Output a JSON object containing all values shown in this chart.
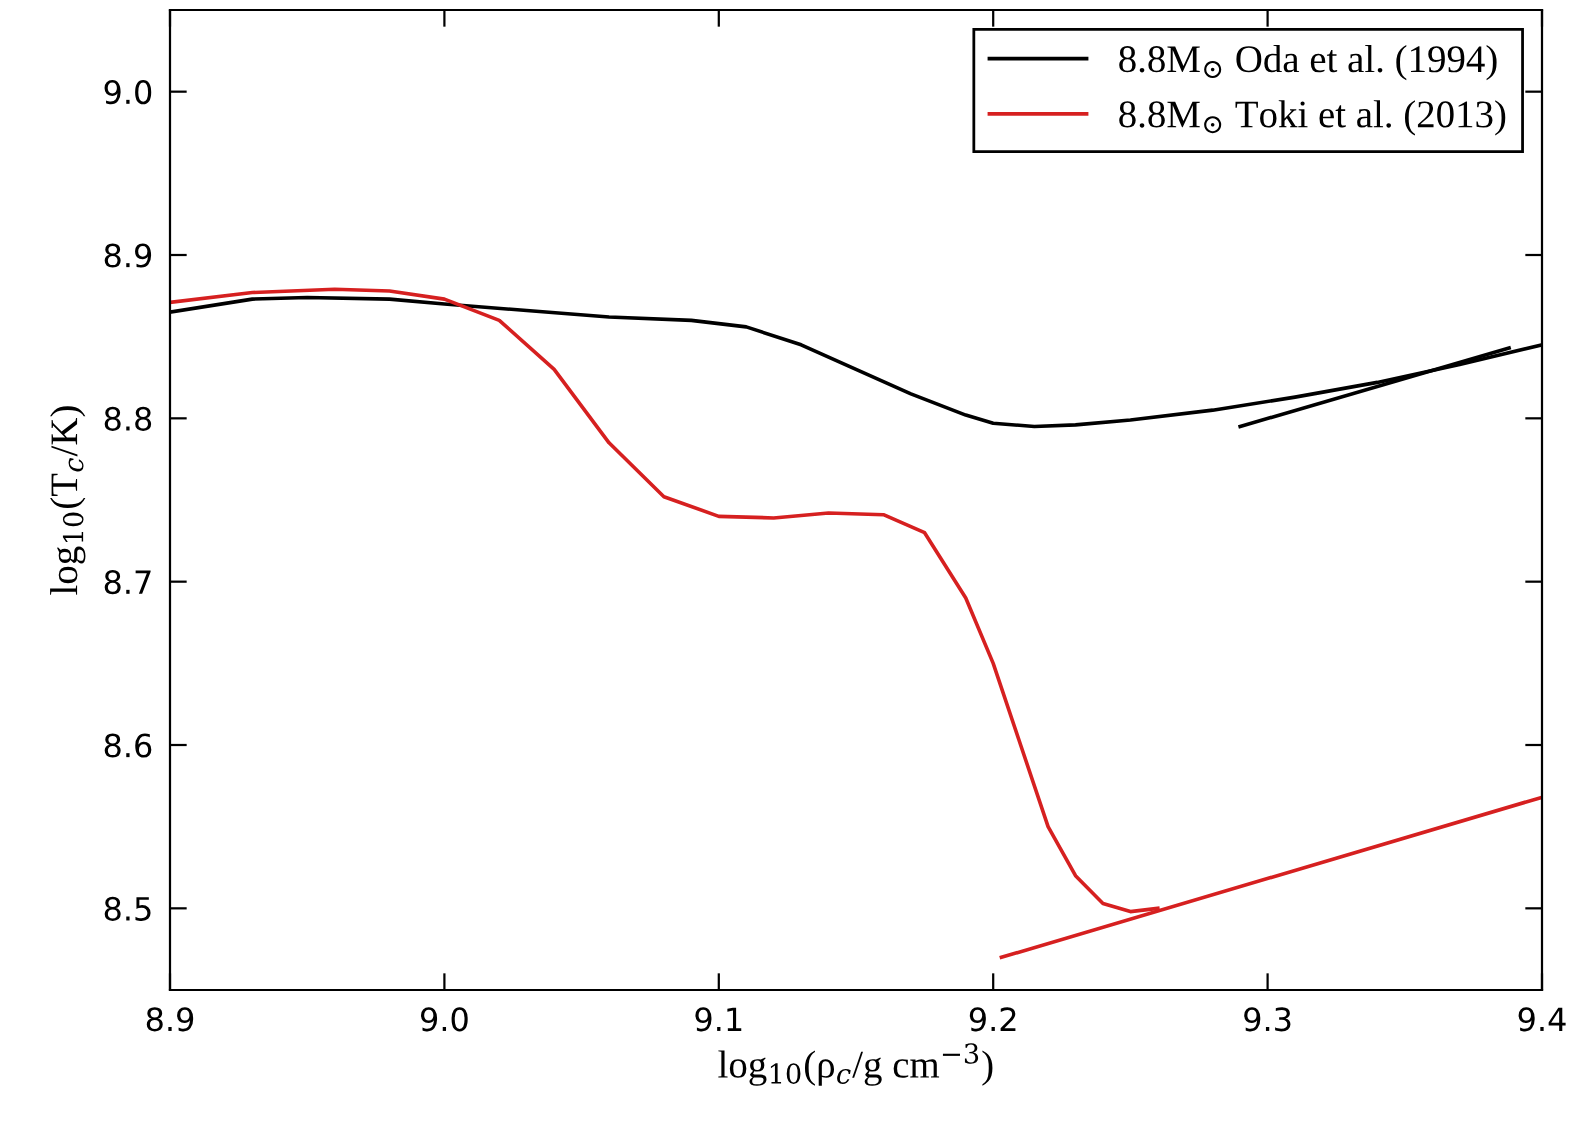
{
  "chart_data": {
    "type": "line",
    "xlabel": "log$_{10}$(ρ$_{c}$/g cm$^{−3}$)",
    "ylabel": "log$_{10}$(T$_{c}$/K)",
    "xlim": [
      8.9,
      9.4
    ],
    "xticks": [
      {
        "value": 8.9,
        "label": "8.9"
      },
      {
        "value": 9.0,
        "label": "9.0"
      },
      {
        "value": 9.1,
        "label": "9.1"
      },
      {
        "value": 9.2,
        "label": "9.2"
      },
      {
        "value": 9.3,
        "label": "9.3"
      },
      {
        "value": 9.4,
        "label": "9.4"
      }
    ],
    "ylim": [
      8.45,
      9.05
    ],
    "yticks": [
      {
        "value": 8.5,
        "label": "8.5"
      },
      {
        "value": 8.6,
        "label": "8.6"
      },
      {
        "value": 8.7,
        "label": "8.7"
      },
      {
        "value": 8.8,
        "label": "8.8"
      },
      {
        "value": 8.9,
        "label": "8.9"
      },
      {
        "value": 9.0,
        "label": "9.0"
      }
    ],
    "grid": false,
    "legend": "top right",
    "marker": "none",
    "line_style": "solid",
    "series": [
      {
        "name": "8.8M$_{⊙}$ Oda et al. (1994)",
        "color": "#000000",
        "x": [
          8.9,
          8.93,
          8.95,
          8.98,
          9.0,
          9.03,
          9.06,
          9.09,
          9.11,
          9.13,
          9.15,
          9.17,
          9.19,
          9.2,
          9.215,
          9.23,
          9.25,
          9.28,
          9.31,
          9.34,
          9.37,
          9.4
        ],
        "values": [
          8.865,
          8.873,
          8.874,
          8.873,
          8.87,
          8.866,
          8.862,
          8.86,
          8.856,
          8.845,
          8.83,
          8.815,
          8.802,
          8.797,
          8.795,
          8.796,
          8.799,
          8.805,
          8.813,
          8.822,
          8.833,
          8.845
        ]
      },
      {
        "color": "#000000",
        "x": [
          9.29,
          9.388
        ],
        "values": [
          8.795,
          8.843
        ]
      },
      {
        "name": "8.8M$_{⊙}$ Toki et al. (2013)",
        "color": "#d62020",
        "x": [
          8.9,
          8.93,
          8.96,
          8.98,
          9.0,
          9.02,
          9.04,
          9.06,
          9.08,
          9.1,
          9.12,
          9.14,
          9.16,
          9.175,
          9.19,
          9.2,
          9.21,
          9.22,
          9.23,
          9.24,
          9.25,
          9.26
        ],
        "values": [
          8.871,
          8.877,
          8.879,
          8.878,
          8.873,
          8.86,
          8.83,
          8.785,
          8.752,
          8.74,
          8.739,
          8.742,
          8.741,
          8.73,
          8.69,
          8.65,
          8.6,
          8.55,
          8.52,
          8.503,
          8.498,
          8.5
        ]
      },
      {
        "color": "#d62020",
        "x": [
          9.203,
          9.4
        ],
        "values": [
          8.47,
          8.568
        ]
      }
    ]
  }
}
